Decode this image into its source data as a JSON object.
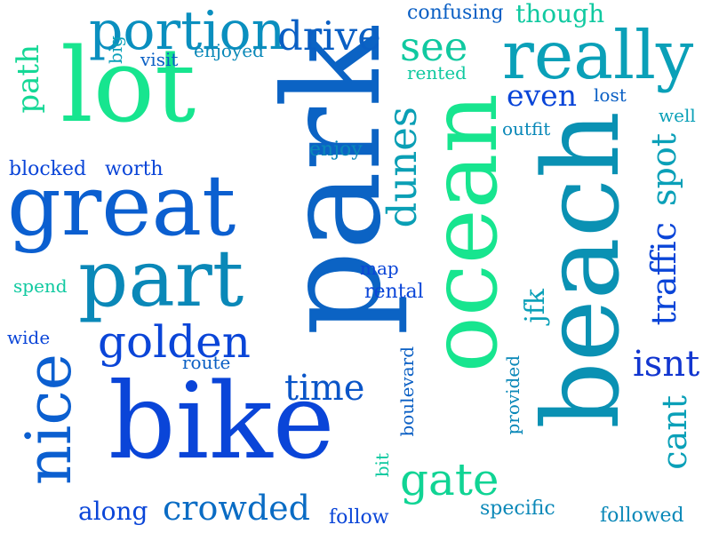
{
  "palette": {
    "green": "#17e58f",
    "teal": "#0a9fb5",
    "cyan": "#05b0a8",
    "aqua": "#0fc7a0",
    "blue": "#0b68c9",
    "royal": "#0a4fd6",
    "indigo": "#1236d0"
  },
  "words": [
    {
      "text": "park",
      "color": "#0b63c4",
      "rotated": true
    },
    {
      "text": "beach",
      "color": "#0a91b3",
      "rotated": true
    },
    {
      "text": "ocean",
      "color": "#17e58f",
      "rotated": true
    },
    {
      "text": "bike",
      "color": "#0a45d8",
      "rotated": false
    },
    {
      "text": "lot",
      "color": "#17e58f",
      "rotated": false
    },
    {
      "text": "great",
      "color": "#0b5fd0",
      "rotated": false
    },
    {
      "text": "really",
      "color": "#0aa0b8",
      "rotated": false
    },
    {
      "text": "part",
      "color": "#0a88b8",
      "rotated": false
    },
    {
      "text": "nice",
      "color": "#0b5fd0",
      "rotated": true
    },
    {
      "text": "portion",
      "color": "#0a8fbf",
      "rotated": false
    },
    {
      "text": "golden",
      "color": "#0a45d8",
      "rotated": false
    },
    {
      "text": "gate",
      "color": "#10d494",
      "rotated": false
    },
    {
      "text": "dunes",
      "color": "#0a9fb5",
      "rotated": true
    },
    {
      "text": "drive",
      "color": "#0a5fc4",
      "rotated": false
    },
    {
      "text": "see",
      "color": "#10c9a0",
      "rotated": false
    },
    {
      "text": "crowded",
      "color": "#0a6cc4",
      "rotated": false
    },
    {
      "text": "time",
      "color": "#0a55c8",
      "rotated": false
    },
    {
      "text": "isnt",
      "color": "#1236d0",
      "rotated": false
    },
    {
      "text": "traffic",
      "color": "#0a45d8",
      "rotated": true
    },
    {
      "text": "cant",
      "color": "#0aa0b8",
      "rotated": true
    },
    {
      "text": "spot",
      "color": "#0aa0b8",
      "rotated": true
    },
    {
      "text": "even",
      "color": "#0a45d8",
      "rotated": false
    },
    {
      "text": "jfk",
      "color": "#0aa0b8",
      "rotated": true
    },
    {
      "text": "along",
      "color": "#0a45d8",
      "rotated": false
    },
    {
      "text": "path",
      "color": "#15d896",
      "rotated": true
    },
    {
      "text": "confusing",
      "color": "#0a5fc4",
      "rotated": false
    },
    {
      "text": "though",
      "color": "#10c9a0",
      "rotated": false
    },
    {
      "text": "enjoyed",
      "color": "#0a88b8",
      "rotated": false
    },
    {
      "text": "visit",
      "color": "#0a5fc4",
      "rotated": false
    },
    {
      "text": "big",
      "color": "#0aa0b8",
      "rotated": true
    },
    {
      "text": "rented",
      "color": "#10c9a0",
      "rotated": false
    },
    {
      "text": "lost",
      "color": "#0a5fc4",
      "rotated": false
    },
    {
      "text": "well",
      "color": "#0aa0b8",
      "rotated": false
    },
    {
      "text": "outfit",
      "color": "#0a88b8",
      "rotated": false
    },
    {
      "text": "enjoy",
      "color": "#0a88b8",
      "rotated": false
    },
    {
      "text": "blocked",
      "color": "#0a45d8",
      "rotated": false
    },
    {
      "text": "worth",
      "color": "#0a45d8",
      "rotated": false
    },
    {
      "text": "map",
      "color": "#0a45d8",
      "rotated": false
    },
    {
      "text": "rental",
      "color": "#0a45d8",
      "rotated": false
    },
    {
      "text": "spend",
      "color": "#10c9a0",
      "rotated": false
    },
    {
      "text": "wide",
      "color": "#0a45d8",
      "rotated": false
    },
    {
      "text": "route",
      "color": "#0a5fc4",
      "rotated": false
    },
    {
      "text": "boulevard",
      "color": "#0a5fc4",
      "rotated": true
    },
    {
      "text": "provided",
      "color": "#0a88b8",
      "rotated": true
    },
    {
      "text": "bit",
      "color": "#10c9a0",
      "rotated": true
    },
    {
      "text": "specific",
      "color": "#0a88b8",
      "rotated": false
    },
    {
      "text": "follow",
      "color": "#0a45d8",
      "rotated": false
    },
    {
      "text": "followed",
      "color": "#0a88b8",
      "rotated": false
    }
  ]
}
